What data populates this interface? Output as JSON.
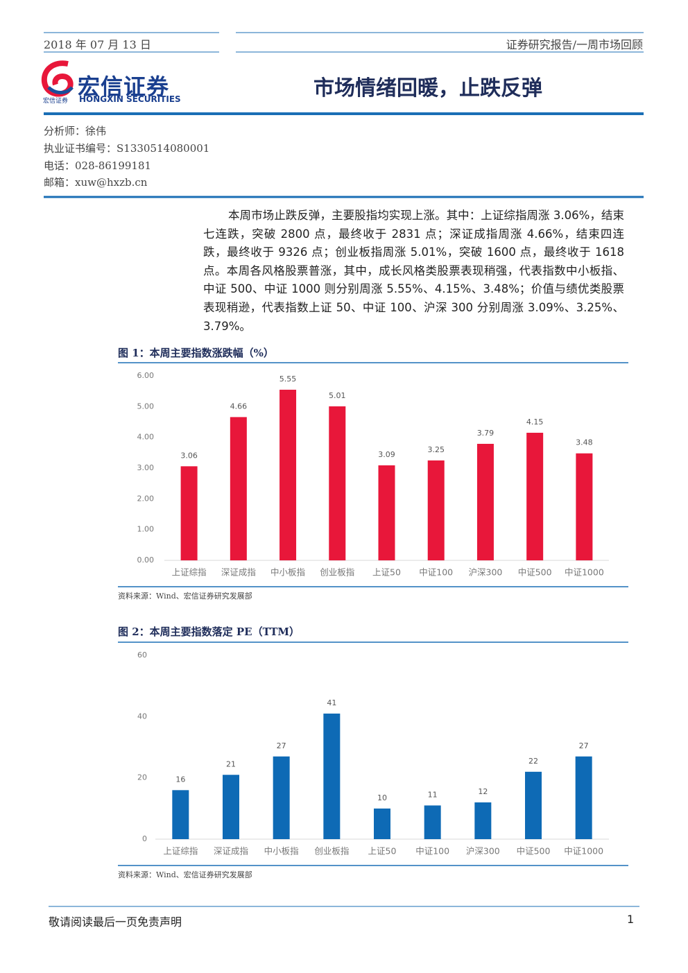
{
  "header": {
    "date": "2018 年 07 月 13 日",
    "category": "证券研究报告/一周市场回顾",
    "logo_cn": "宏信证券",
    "logo_small": "宏信证券",
    "logo_en": "HONGXIN SECURITIES",
    "title": "市场情绪回暖，止跌反弹"
  },
  "analyst": [
    "分析师：徐伟",
    "执业证书编号：S1330514080001",
    "电话：028-86199181",
    "邮箱：xuw@hxzb.cn"
  ],
  "body": "本周市场止跌反弹，主要股指均实现上涨。其中：上证综指周涨 3.06%，结束七连跌，突破 2800 点，最终收于 2831 点；深证成指周涨 4.66%，结束四连跌，最终收于 9326 点；创业板指周涨 5.01%，突破 1600 点，最终收于 1618 点。本周各风格股票普涨，其中，成长风格类股票表现稍强，代表指数中小板指、中证 500、中证 1000 则分别周涨 5.55%、4.15%、3.48%；价值与绩优类股票表现稍逊，代表指数上证 50、中证 100、沪深 300 分别周涨 3.09%、3.25%、3.79%。",
  "chart_data": [
    {
      "type": "bar",
      "title": "图 1：本周主要指数涨跌幅（%）",
      "categories": [
        "上证综指",
        "深证成指",
        "中小板指",
        "创业板指",
        "上证50",
        "中证100",
        "沪深300",
        "中证500",
        "中证1000"
      ],
      "values": [
        3.06,
        4.66,
        5.55,
        5.01,
        3.09,
        3.25,
        3.79,
        4.15,
        3.48
      ],
      "color": "#e8173a",
      "ylim": [
        0,
        6
      ],
      "yticks": [
        {
          "value": 0,
          "label": "0.00"
        },
        {
          "value": 1,
          "label": "1.00"
        },
        {
          "value": 2,
          "label": "2.00"
        },
        {
          "value": 3,
          "label": "3.00"
        },
        {
          "value": 4,
          "label": "4.00"
        },
        {
          "value": 5,
          "label": "5.00"
        },
        {
          "value": 6,
          "label": "6.00"
        }
      ],
      "source": "资料来源：Wind、宏信证券研究发展部"
    },
    {
      "type": "bar",
      "title": "图 2：本周主要指数落定 PE（TTM）",
      "categories": [
        "上证综指",
        "深证成指",
        "中小板指",
        "创业板指",
        "上证50",
        "中证100",
        "沪深300",
        "中证500",
        "中证1000"
      ],
      "values": [
        16,
        21,
        27,
        41,
        10,
        11,
        12,
        22,
        27
      ],
      "color": "#0e6ab5",
      "ylim": [
        0,
        60
      ],
      "yticks": [
        0,
        20,
        40,
        60
      ],
      "source": "资料来源：Wind、宏信证券研究发展部"
    }
  ],
  "footer": {
    "disclaimer": "敬请阅读最后一页免责声明",
    "page": 1
  }
}
